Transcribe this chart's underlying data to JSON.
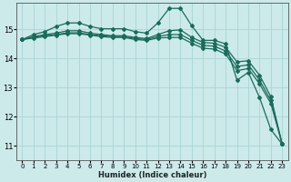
{
  "xlabel": "Humidex (Indice chaleur)",
  "ylabel": "",
  "bg_color": "#cceaea",
  "grid_color": "#aad4d4",
  "line_color": "#1a6b5a",
  "xlim": [
    -0.5,
    23.5
  ],
  "ylim": [
    10.5,
    15.9
  ],
  "yticks": [
    11,
    12,
    13,
    14,
    15
  ],
  "xticks": [
    0,
    1,
    2,
    3,
    4,
    5,
    6,
    7,
    8,
    9,
    10,
    11,
    12,
    13,
    14,
    15,
    16,
    17,
    18,
    19,
    20,
    21,
    22,
    23
  ],
  "series": [
    [
      14.65,
      14.82,
      14.92,
      15.1,
      15.22,
      15.22,
      15.1,
      15.02,
      15.02,
      15.02,
      14.92,
      14.87,
      15.22,
      15.72,
      15.72,
      15.12,
      14.62,
      14.62,
      14.5,
      13.25,
      13.52,
      12.65,
      11.55,
      11.05
    ],
    [
      14.65,
      14.75,
      14.82,
      14.87,
      14.95,
      14.95,
      14.87,
      14.82,
      14.78,
      14.78,
      14.72,
      14.68,
      14.82,
      14.95,
      14.98,
      14.72,
      14.55,
      14.52,
      14.38,
      13.88,
      13.92,
      13.42,
      12.68,
      11.05
    ],
    [
      14.65,
      14.72,
      14.78,
      14.82,
      14.88,
      14.88,
      14.82,
      14.78,
      14.75,
      14.75,
      14.68,
      14.65,
      14.75,
      14.82,
      14.82,
      14.62,
      14.45,
      14.42,
      14.25,
      13.72,
      13.78,
      13.25,
      12.55,
      11.05
    ],
    [
      14.65,
      14.7,
      14.75,
      14.8,
      14.85,
      14.85,
      14.8,
      14.75,
      14.72,
      14.72,
      14.65,
      14.62,
      14.7,
      14.72,
      14.72,
      14.52,
      14.35,
      14.32,
      14.15,
      13.58,
      13.65,
      13.12,
      12.45,
      11.05
    ]
  ]
}
